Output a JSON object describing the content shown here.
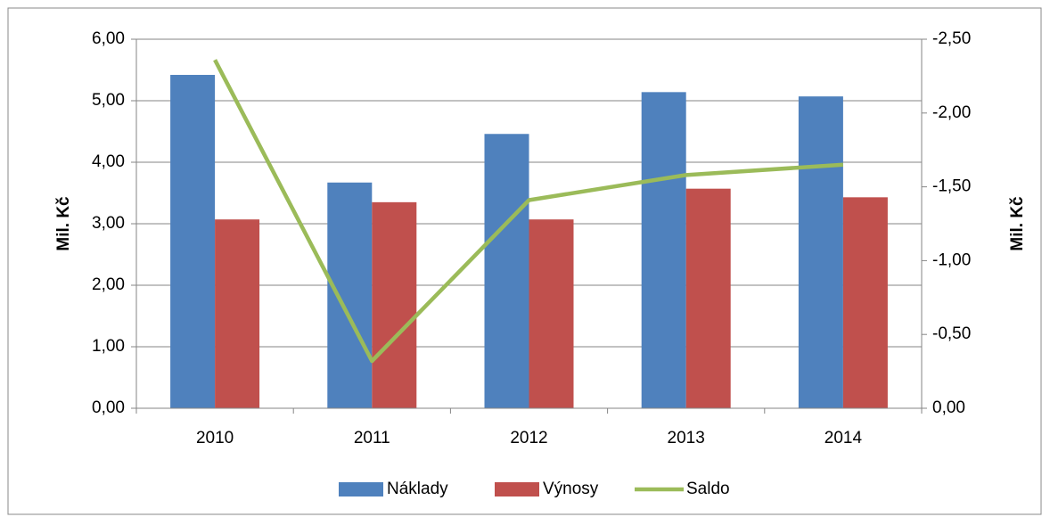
{
  "chart_data": {
    "type": "bar",
    "categories": [
      "2010",
      "2011",
      "2012",
      "2013",
      "2014"
    ],
    "series": [
      {
        "name": "Náklady",
        "color": "#4f81bd",
        "values": [
          5.42,
          3.67,
          4.46,
          5.14,
          5.07
        ]
      },
      {
        "name": "Výnosy",
        "color": "#c0504d",
        "values": [
          3.07,
          3.35,
          3.07,
          3.57,
          3.43
        ]
      },
      {
        "name": "Saldo",
        "color": "#9bbb59",
        "type": "line",
        "axis": "y2",
        "values": [
          -2.36,
          -0.32,
          -1.41,
          -1.58,
          -1.65
        ]
      }
    ],
    "ylabel": "Mil. Kč",
    "y2label": "Mil. Kč",
    "ylim": [
      0,
      6
    ],
    "yticks": [
      {
        "value": 0,
        "label": "0,00"
      },
      {
        "value": 1,
        "label": "1,00"
      },
      {
        "value": 2,
        "label": "2,00"
      },
      {
        "value": 3,
        "label": "3,00"
      },
      {
        "value": 4,
        "label": "4,00"
      },
      {
        "value": 5,
        "label": "5,00"
      },
      {
        "value": 6,
        "label": "6,00"
      }
    ],
    "y2lim": [
      0,
      -2.5
    ],
    "y2ticks": [
      {
        "value": 0,
        "label": "0,00"
      },
      {
        "value": -0.5,
        "label": "-0,50"
      },
      {
        "value": -1,
        "label": "-1,00"
      },
      {
        "value": -1.5,
        "label": "-1,50"
      },
      {
        "value": -2,
        "label": "-2,00"
      },
      {
        "value": -2.5,
        "label": "-2,50"
      }
    ],
    "grid": true,
    "legend": "bottom"
  }
}
